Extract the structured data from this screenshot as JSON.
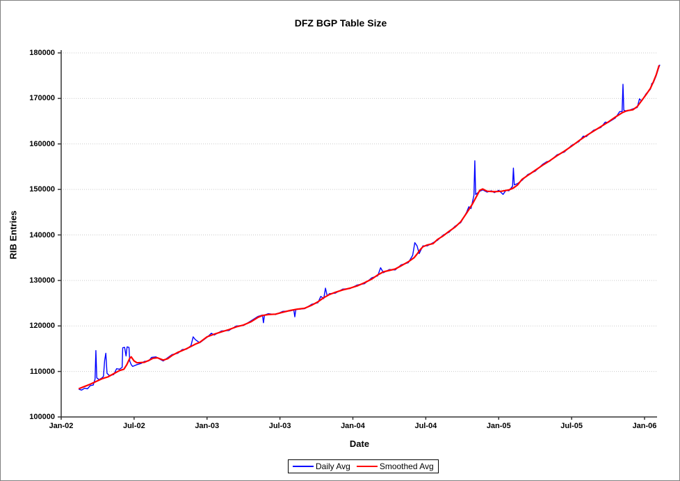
{
  "window": {
    "background": "#ffffff",
    "border_color": "#7f7f7f"
  },
  "chart_data": {
    "type": "line",
    "title": "DFZ BGP Table Size",
    "xlabel": "Date",
    "ylabel": "RIB Entries",
    "ylim": [
      100000,
      180000
    ],
    "ytick_step": 10000,
    "yticks": [
      "100000",
      "110000",
      "120000",
      "130000",
      "140000",
      "150000",
      "160000",
      "170000",
      "180000"
    ],
    "xticks": [
      {
        "label": "Jan-02",
        "t": 0.0
      },
      {
        "label": "Jul-02",
        "t": 0.5
      },
      {
        "label": "Jan-03",
        "t": 1.0
      },
      {
        "label": "Jul-03",
        "t": 1.5
      },
      {
        "label": "Jan-04",
        "t": 2.0
      },
      {
        "label": "Jul-04",
        "t": 2.5
      },
      {
        "label": "Jan-05",
        "t": 3.0
      },
      {
        "label": "Jul-05",
        "t": 3.5
      },
      {
        "label": "Jan-06",
        "t": 4.0
      }
    ],
    "x_unit": "years since Jan-2002",
    "xlim_t": [
      0,
      4.11
    ],
    "grid": "horizontal-dotted",
    "gridline_color": "#c9c9c9",
    "axis_color": "#333333",
    "legend_position": "bottom-center",
    "series": [
      {
        "name": "Daily Avg",
        "color": "#0000ff",
        "points": [
          [
            0.12,
            106100
          ],
          [
            0.14,
            105900
          ],
          [
            0.16,
            106300
          ],
          [
            0.18,
            106200
          ],
          [
            0.2,
            106900
          ],
          [
            0.22,
            107000
          ],
          [
            0.232,
            108300
          ],
          [
            0.238,
            114600
          ],
          [
            0.244,
            108600
          ],
          [
            0.26,
            108200
          ],
          [
            0.28,
            108600
          ],
          [
            0.29,
            108900
          ],
          [
            0.298,
            112400
          ],
          [
            0.306,
            114000
          ],
          [
            0.314,
            109600
          ],
          [
            0.33,
            109100
          ],
          [
            0.36,
            109300
          ],
          [
            0.38,
            110600
          ],
          [
            0.4,
            110500
          ],
          [
            0.418,
            110900
          ],
          [
            0.422,
            115200
          ],
          [
            0.435,
            115300
          ],
          [
            0.445,
            113400
          ],
          [
            0.452,
            115400
          ],
          [
            0.465,
            115300
          ],
          [
            0.47,
            112300
          ],
          [
            0.48,
            111500
          ],
          [
            0.49,
            111100
          ],
          [
            0.52,
            111500
          ],
          [
            0.55,
            111800
          ],
          [
            0.57,
            112200
          ],
          [
            0.6,
            112300
          ],
          [
            0.62,
            113100
          ],
          [
            0.65,
            113200
          ],
          [
            0.67,
            112800
          ],
          [
            0.7,
            112300
          ],
          [
            0.73,
            113000
          ],
          [
            0.76,
            113700
          ],
          [
            0.8,
            114000
          ],
          [
            0.83,
            114800
          ],
          [
            0.86,
            114900
          ],
          [
            0.89,
            115700
          ],
          [
            0.905,
            117600
          ],
          [
            0.92,
            117000
          ],
          [
            0.95,
            116300
          ],
          [
            1.0,
            117500
          ],
          [
            1.03,
            118400
          ],
          [
            1.05,
            118000
          ],
          [
            1.1,
            118900
          ],
          [
            1.15,
            119000
          ],
          [
            1.2,
            120000
          ],
          [
            1.25,
            120100
          ],
          [
            1.3,
            121100
          ],
          [
            1.35,
            122100
          ],
          [
            1.38,
            122400
          ],
          [
            1.387,
            120700
          ],
          [
            1.394,
            122400
          ],
          [
            1.42,
            122700
          ],
          [
            1.47,
            122500
          ],
          [
            1.52,
            123200
          ],
          [
            1.57,
            123300
          ],
          [
            1.595,
            123500
          ],
          [
            1.602,
            122000
          ],
          [
            1.609,
            123600
          ],
          [
            1.67,
            123800
          ],
          [
            1.72,
            124800
          ],
          [
            1.76,
            125100
          ],
          [
            1.78,
            126500
          ],
          [
            1.8,
            126000
          ],
          [
            1.812,
            128300
          ],
          [
            1.824,
            126600
          ],
          [
            1.84,
            127100
          ],
          [
            1.88,
            127200
          ],
          [
            1.93,
            128100
          ],
          [
            1.98,
            128200
          ],
          [
            2.03,
            129000
          ],
          [
            2.08,
            129300
          ],
          [
            2.13,
            130600
          ],
          [
            2.17,
            131000
          ],
          [
            2.19,
            132800
          ],
          [
            2.21,
            131700
          ],
          [
            2.25,
            132400
          ],
          [
            2.29,
            132300
          ],
          [
            2.33,
            133400
          ],
          [
            2.38,
            133900
          ],
          [
            2.41,
            135500
          ],
          [
            2.425,
            138300
          ],
          [
            2.44,
            137600
          ],
          [
            2.455,
            135900
          ],
          [
            2.48,
            137600
          ],
          [
            2.51,
            137600
          ],
          [
            2.55,
            138300
          ],
          [
            2.58,
            138800
          ],
          [
            2.62,
            140000
          ],
          [
            2.66,
            140600
          ],
          [
            2.7,
            141900
          ],
          [
            2.74,
            142700
          ],
          [
            2.78,
            145000
          ],
          [
            2.795,
            146200
          ],
          [
            2.81,
            145800
          ],
          [
            2.83,
            148700
          ],
          [
            2.836,
            156300
          ],
          [
            2.842,
            148900
          ],
          [
            2.87,
            149600
          ],
          [
            2.89,
            149900
          ],
          [
            2.92,
            149400
          ],
          [
            2.95,
            149700
          ],
          [
            2.97,
            149300
          ],
          [
            3.0,
            149800
          ],
          [
            3.03,
            148900
          ],
          [
            3.05,
            149800
          ],
          [
            3.07,
            149700
          ],
          [
            3.095,
            150700
          ],
          [
            3.101,
            154700
          ],
          [
            3.107,
            151000
          ],
          [
            3.13,
            151300
          ],
          [
            3.16,
            152000
          ],
          [
            3.2,
            153300
          ],
          [
            3.25,
            154000
          ],
          [
            3.3,
            155500
          ],
          [
            3.33,
            156100
          ],
          [
            3.35,
            156200
          ],
          [
            3.4,
            157600
          ],
          [
            3.45,
            158200
          ],
          [
            3.5,
            159700
          ],
          [
            3.55,
            160500
          ],
          [
            3.58,
            161700
          ],
          [
            3.6,
            161600
          ],
          [
            3.65,
            163000
          ],
          [
            3.7,
            163600
          ],
          [
            3.73,
            164800
          ],
          [
            3.75,
            164700
          ],
          [
            3.8,
            165700
          ],
          [
            3.83,
            167100
          ],
          [
            3.846,
            167100
          ],
          [
            3.852,
            173100
          ],
          [
            3.858,
            167400
          ],
          [
            3.88,
            167200
          ],
          [
            3.92,
            167700
          ],
          [
            3.95,
            168000
          ],
          [
            3.965,
            169900
          ],
          [
            3.98,
            169400
          ],
          [
            4.01,
            171000
          ],
          [
            4.04,
            172000
          ],
          [
            4.05,
            173300
          ],
          [
            4.06,
            173400
          ],
          [
            4.08,
            175000
          ],
          [
            4.095,
            176500
          ],
          [
            4.105,
            177400
          ]
        ]
      },
      {
        "name": "Smoothed Avg",
        "color": "#ff0000",
        "points": [
          [
            0.12,
            106200
          ],
          [
            0.16,
            106700
          ],
          [
            0.2,
            107200
          ],
          [
            0.24,
            107800
          ],
          [
            0.28,
            108400
          ],
          [
            0.32,
            108800
          ],
          [
            0.36,
            109500
          ],
          [
            0.4,
            110200
          ],
          [
            0.43,
            110500
          ],
          [
            0.45,
            111500
          ],
          [
            0.47,
            112900
          ],
          [
            0.48,
            113200
          ],
          [
            0.5,
            112300
          ],
          [
            0.52,
            111900
          ],
          [
            0.57,
            112000
          ],
          [
            0.6,
            112400
          ],
          [
            0.63,
            112900
          ],
          [
            0.66,
            113000
          ],
          [
            0.7,
            112500
          ],
          [
            0.73,
            112800
          ],
          [
            0.76,
            113500
          ],
          [
            0.8,
            114200
          ],
          [
            0.83,
            114600
          ],
          [
            0.86,
            115000
          ],
          [
            0.89,
            115500
          ],
          [
            0.92,
            116000
          ],
          [
            0.95,
            116400
          ],
          [
            1.0,
            117600
          ],
          [
            1.05,
            118200
          ],
          [
            1.1,
            118700
          ],
          [
            1.15,
            119200
          ],
          [
            1.2,
            119800
          ],
          [
            1.25,
            120200
          ],
          [
            1.3,
            120900
          ],
          [
            1.35,
            121900
          ],
          [
            1.38,
            122300
          ],
          [
            1.42,
            122500
          ],
          [
            1.47,
            122600
          ],
          [
            1.52,
            123000
          ],
          [
            1.57,
            123400
          ],
          [
            1.62,
            123700
          ],
          [
            1.67,
            123900
          ],
          [
            1.72,
            124600
          ],
          [
            1.76,
            125300
          ],
          [
            1.8,
            126200
          ],
          [
            1.84,
            126900
          ],
          [
            1.88,
            127400
          ],
          [
            1.93,
            127900
          ],
          [
            1.98,
            128300
          ],
          [
            2.03,
            128800
          ],
          [
            2.08,
            129500
          ],
          [
            2.13,
            130300
          ],
          [
            2.17,
            131200
          ],
          [
            2.21,
            131900
          ],
          [
            2.25,
            132200
          ],
          [
            2.29,
            132500
          ],
          [
            2.33,
            133200
          ],
          [
            2.38,
            134100
          ],
          [
            2.42,
            135000
          ],
          [
            2.44,
            135800
          ],
          [
            2.46,
            136700
          ],
          [
            2.48,
            137400
          ],
          [
            2.51,
            137800
          ],
          [
            2.55,
            138100
          ],
          [
            2.58,
            139000
          ],
          [
            2.62,
            139800
          ],
          [
            2.66,
            140800
          ],
          [
            2.7,
            141700
          ],
          [
            2.74,
            142900
          ],
          [
            2.78,
            144800
          ],
          [
            2.82,
            146800
          ],
          [
            2.85,
            148600
          ],
          [
            2.87,
            149800
          ],
          [
            2.89,
            150100
          ],
          [
            2.92,
            149600
          ],
          [
            2.97,
            149500
          ],
          [
            3.02,
            149600
          ],
          [
            3.07,
            149900
          ],
          [
            3.1,
            150300
          ],
          [
            3.13,
            151000
          ],
          [
            3.16,
            152200
          ],
          [
            3.2,
            153100
          ],
          [
            3.25,
            154200
          ],
          [
            3.3,
            155300
          ],
          [
            3.35,
            156300
          ],
          [
            3.4,
            157400
          ],
          [
            3.45,
            158400
          ],
          [
            3.5,
            159500
          ],
          [
            3.55,
            160700
          ],
          [
            3.6,
            161800
          ],
          [
            3.65,
            162800
          ],
          [
            3.7,
            163800
          ],
          [
            3.75,
            164800
          ],
          [
            3.8,
            165900
          ],
          [
            3.85,
            166900
          ],
          [
            3.88,
            167300
          ],
          [
            3.92,
            167500
          ],
          [
            3.95,
            168200
          ],
          [
            3.98,
            169500
          ],
          [
            4.01,
            170800
          ],
          [
            4.04,
            172200
          ],
          [
            4.06,
            173600
          ],
          [
            4.08,
            175200
          ],
          [
            4.1,
            177300
          ]
        ]
      }
    ]
  }
}
